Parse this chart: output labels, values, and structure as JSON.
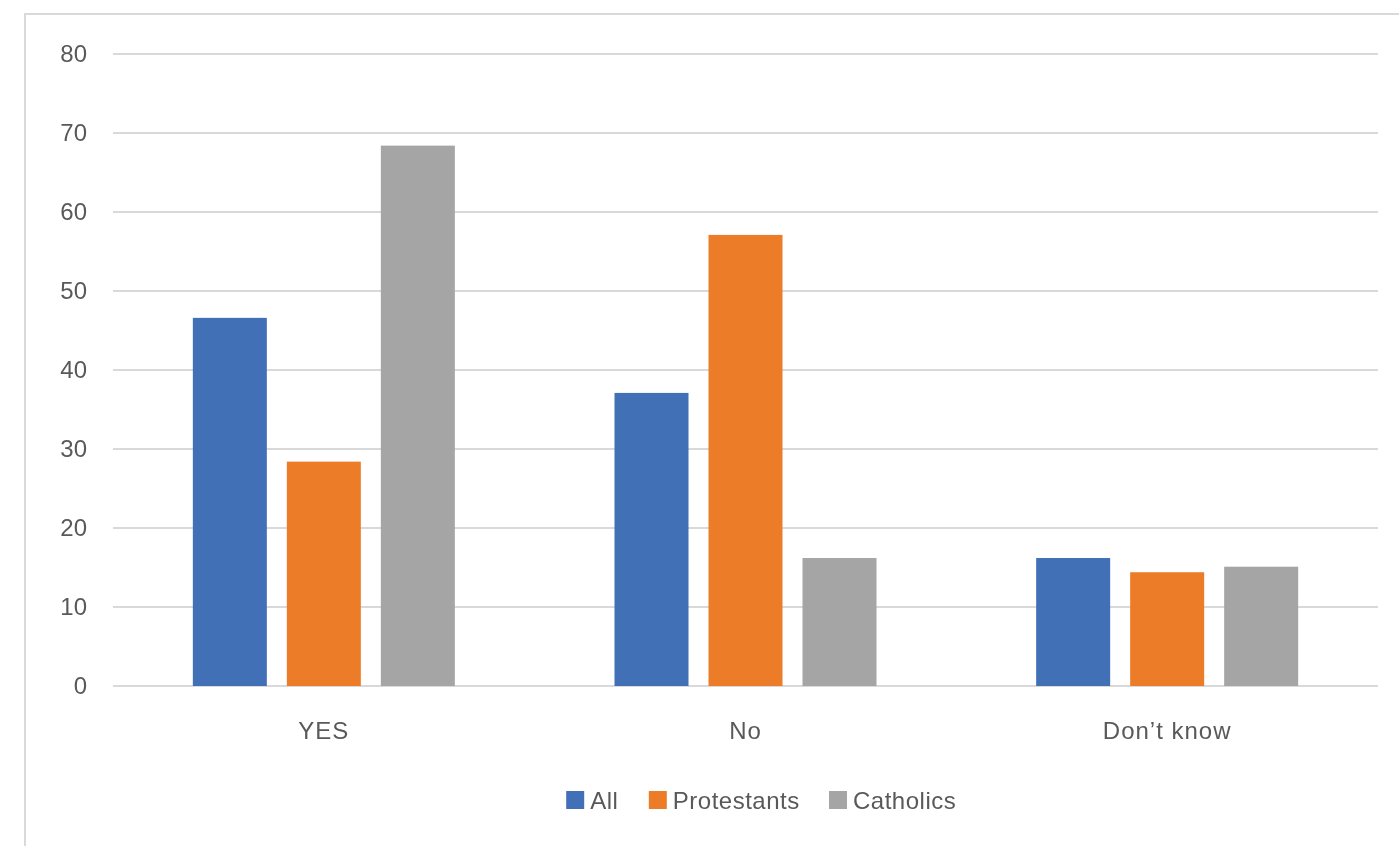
{
  "chart_data": {
    "type": "bar",
    "categories": [
      "YES",
      "No",
      "Don’t know"
    ],
    "series": [
      {
        "name": "All",
        "color": "#4170b6",
        "values": [
          46.6,
          37.1,
          16.2
        ]
      },
      {
        "name": "Protestants",
        "color": "#ec7c27",
        "values": [
          28.4,
          57.1,
          14.4
        ]
      },
      {
        "name": "Catholics",
        "color": "#a5a5a5",
        "values": [
          68.4,
          16.2,
          15.1
        ]
      }
    ],
    "ylim": [
      0,
      80
    ],
    "yticks": [
      0,
      10,
      20,
      30,
      40,
      50,
      60,
      70,
      80
    ],
    "grid": "y",
    "legend": "bottom"
  }
}
